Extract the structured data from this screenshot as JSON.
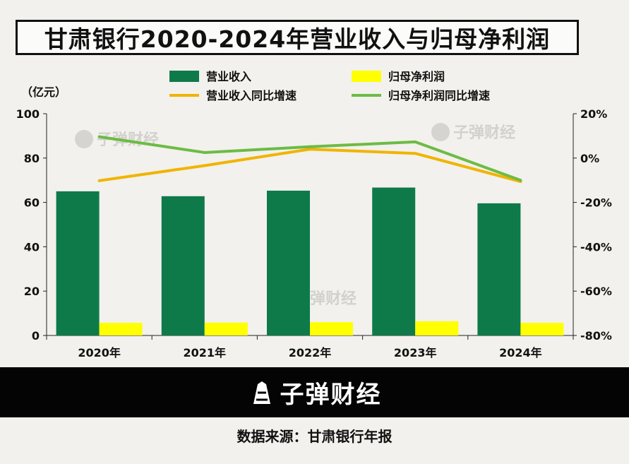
{
  "title": "甘肃银行2020-2024年营业收入与归母净利润",
  "brand": "子弹财经",
  "source_label": "数据来源：甘肃银行年报",
  "colors": {
    "revenue": "#0e7a4a",
    "net_profit": "#ffff00",
    "revenue_growth": "#f0b400",
    "profit_growth": "#6dbb45"
  },
  "chart_data": {
    "type": "bar",
    "categories": [
      "2020年",
      "2021年",
      "2022年",
      "2023年",
      "2024年"
    ],
    "y_unit": "（亿元）",
    "ylim": [
      0,
      100
    ],
    "yticks": [
      0,
      20,
      40,
      60,
      80,
      100
    ],
    "y2lim": [
      -80,
      20
    ],
    "y2ticks": [
      -80,
      -60,
      -40,
      -20,
      0,
      20
    ],
    "y2tick_labels": [
      "-80%",
      "-60%",
      "-40%",
      "-20%",
      "0%",
      "20%"
    ],
    "series": [
      {
        "name": "营业收入",
        "type": "bar",
        "axis": "left",
        "values": [
          65.0,
          62.8,
          65.3,
          66.7,
          59.6
        ]
      },
      {
        "name": "归母净利润",
        "type": "bar",
        "axis": "left",
        "values": [
          5.7,
          5.8,
          6.0,
          6.4,
          5.7
        ]
      },
      {
        "name": "营业收入同比增速",
        "type": "line",
        "axis": "right",
        "values": [
          -10.2,
          -3.4,
          4.0,
          2.1,
          -10.6
        ]
      },
      {
        "name": "归母净利润同比增速",
        "type": "line",
        "axis": "right",
        "values": [
          9.6,
          2.5,
          5.1,
          7.3,
          -10.0
        ]
      }
    ]
  }
}
